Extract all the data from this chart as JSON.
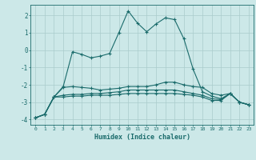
{
  "xlabel": "Humidex (Indice chaleur)",
  "bg_color": "#cce8e8",
  "grid_color": "#aacccc",
  "line_color": "#1a6b6b",
  "x_values": [
    0,
    1,
    2,
    3,
    4,
    5,
    6,
    7,
    8,
    9,
    10,
    11,
    12,
    13,
    14,
    15,
    16,
    17,
    18,
    19,
    20,
    21,
    22,
    23
  ],
  "line1": [
    -3.9,
    -3.7,
    -2.7,
    -2.1,
    -0.1,
    -0.25,
    -0.45,
    -0.35,
    -0.2,
    1.0,
    2.25,
    1.55,
    1.05,
    1.5,
    1.85,
    1.75,
    0.65,
    -1.1,
    -2.4,
    -2.65,
    -2.8,
    -2.5,
    -3.0,
    -3.15
  ],
  "line2": [
    -3.9,
    -3.7,
    -2.7,
    -2.15,
    -2.1,
    -2.15,
    -2.2,
    -2.3,
    -2.25,
    -2.2,
    -2.1,
    -2.1,
    -2.1,
    -2.0,
    -1.85,
    -1.85,
    -2.0,
    -2.1,
    -2.15,
    -2.5,
    -2.6,
    -2.5,
    -3.0,
    -3.15
  ],
  "line3": [
    -3.9,
    -3.7,
    -2.7,
    -2.6,
    -2.55,
    -2.55,
    -2.5,
    -2.5,
    -2.45,
    -2.4,
    -2.3,
    -2.3,
    -2.3,
    -2.3,
    -2.3,
    -2.3,
    -2.4,
    -2.5,
    -2.6,
    -2.8,
    -2.85,
    -2.5,
    -3.0,
    -3.15
  ],
  "line4": [
    -3.9,
    -3.7,
    -2.7,
    -2.7,
    -2.65,
    -2.65,
    -2.6,
    -2.6,
    -2.6,
    -2.55,
    -2.5,
    -2.5,
    -2.5,
    -2.5,
    -2.5,
    -2.5,
    -2.55,
    -2.6,
    -2.7,
    -2.9,
    -2.9,
    -2.5,
    -3.0,
    -3.15
  ],
  "ylim": [
    -4.3,
    2.6
  ],
  "xlim": [
    -0.5,
    23.5
  ],
  "yticks": [
    -4,
    -3,
    -2,
    -1,
    0,
    1,
    2
  ],
  "xticks": [
    0,
    1,
    2,
    3,
    4,
    5,
    6,
    7,
    8,
    9,
    10,
    11,
    12,
    13,
    14,
    15,
    16,
    17,
    18,
    19,
    20,
    21,
    22,
    23
  ]
}
